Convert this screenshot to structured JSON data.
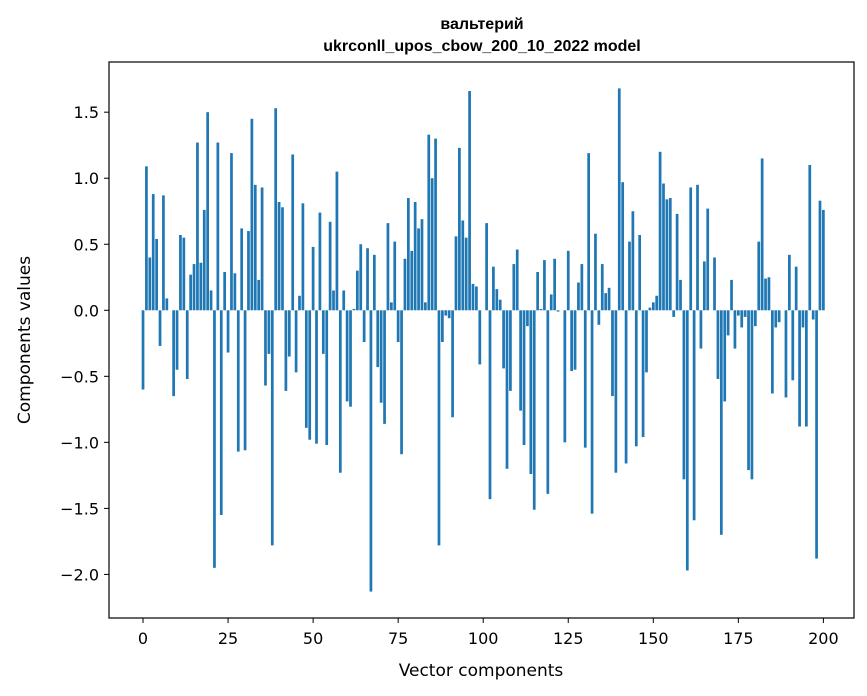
{
  "chart_data": {
    "type": "bar",
    "title_line1": "вальтерий",
    "title_line2": "ukrconll_upos_cbow_200_10_2022 model",
    "xlabel": "Vector components",
    "ylabel": "Components values",
    "xlim": [
      -10,
      209
    ],
    "ylim": [
      -2.33,
      1.88
    ],
    "xticks": [
      0,
      25,
      50,
      75,
      100,
      125,
      150,
      175,
      200
    ],
    "yticks": [
      1.5,
      1.0,
      0.5,
      0.0,
      -0.5,
      -1.0,
      -1.5,
      -2.0
    ],
    "ytick_labels": [
      "1.5",
      "1.0",
      "0.5",
      "0.0",
      "−0.5",
      "−1.0",
      "−1.5",
      "−2.0"
    ],
    "bar_color": "#1f77b4",
    "values": [
      -0.6,
      1.09,
      0.4,
      0.88,
      0.54,
      -0.27,
      0.87,
      0.09,
      0.0,
      -0.65,
      -0.45,
      0.57,
      0.55,
      -0.52,
      0.27,
      0.35,
      1.27,
      0.36,
      0.76,
      1.5,
      0.15,
      -1.95,
      1.27,
      -1.55,
      0.29,
      -0.32,
      1.19,
      0.28,
      -1.07,
      0.62,
      -1.06,
      0.6,
      1.45,
      0.95,
      0.23,
      0.93,
      -0.57,
      -0.33,
      -1.78,
      1.53,
      0.82,
      0.78,
      -0.61,
      -0.35,
      1.18,
      -0.47,
      0.11,
      0.81,
      -0.89,
      -0.98,
      0.48,
      -1.01,
      0.74,
      -0.33,
      -1.02,
      0.67,
      0.15,
      1.05,
      -1.23,
      0.15,
      -0.69,
      -0.73,
      0.01,
      0.3,
      0.5,
      -0.24,
      0.47,
      -2.13,
      0.42,
      -0.43,
      -0.7,
      -0.86,
      0.66,
      0.06,
      0.52,
      -0.24,
      -1.09,
      0.39,
      0.85,
      0.45,
      0.82,
      0.62,
      0.69,
      0.06,
      1.33,
      1.0,
      1.3,
      -1.78,
      -0.24,
      -0.04,
      -0.06,
      -0.81,
      0.56,
      1.23,
      0.68,
      0.55,
      1.66,
      0.2,
      0.18,
      -0.41,
      0.0,
      0.66,
      -1.43,
      0.33,
      0.16,
      0.08,
      -0.44,
      -1.2,
      -0.61,
      0.35,
      0.46,
      -0.76,
      -1.02,
      -0.12,
      -1.24,
      -1.51,
      0.29,
      0.01,
      0.38,
      -1.39,
      0.12,
      0.39,
      -0.01,
      0.0,
      -1.0,
      0.45,
      -0.46,
      -0.45,
      0.21,
      0.35,
      -1.04,
      1.19,
      -1.54,
      0.58,
      -0.11,
      0.35,
      0.13,
      0.17,
      -0.65,
      -1.23,
      1.68,
      0.97,
      -1.16,
      0.52,
      0.75,
      -1.03,
      0.57,
      -0.96,
      -0.47,
      0.02,
      0.06,
      0.11,
      1.2,
      0.96,
      0.84,
      0.85,
      -0.05,
      0.73,
      0.23,
      -1.28,
      -1.97,
      0.93,
      -1.59,
      0.95,
      -0.29,
      0.37,
      0.77,
      0.0,
      0.4,
      -0.52,
      -1.7,
      -0.69,
      -0.19,
      0.23,
      -0.29,
      -0.04,
      -0.13,
      -0.05,
      -1.21,
      -1.28,
      -0.12,
      0.52,
      1.15,
      0.24,
      0.25,
      -0.63,
      -0.13,
      -0.09,
      0.0,
      -0.66,
      0.42,
      -0.53,
      0.33,
      -0.88,
      -0.13,
      -0.88,
      1.1,
      -0.07,
      -1.88,
      0.83,
      0.76
    ]
  }
}
